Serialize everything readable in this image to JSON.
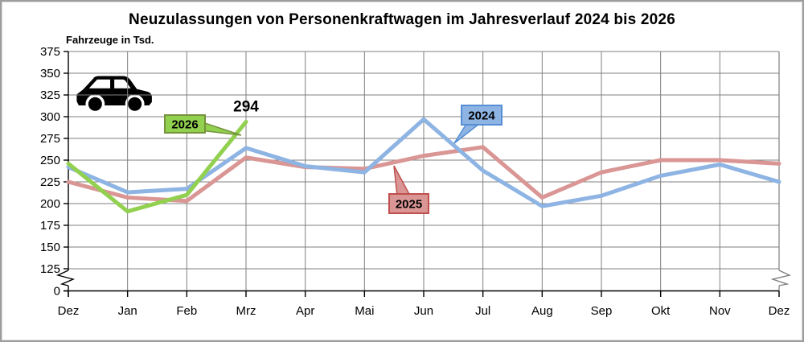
{
  "header": {
    "title": "Neuzulassungen von Personenkraftwagen im Jahresverlauf 2024 bis 2026",
    "unit_label": "Fahrzeuge in Tsd."
  },
  "colors": {
    "grid": "#7f7f7f",
    "axis": "#000000",
    "series_2024": "#8EB4E3",
    "series_2025": "#D99694",
    "series_2026": "#92D050",
    "callout_border_2024": "#558ED5",
    "callout_border_2025": "#C0504D",
    "callout_border_2026": "#76933C"
  },
  "chart_data": {
    "type": "line",
    "title": "Neuzulassungen von Personenkraftwagen im Jahresverlauf 2024 bis 2026",
    "ylabel": "Fahrzeuge in Tsd.",
    "xlabel": "",
    "grid": true,
    "ylim": [
      125,
      375
    ],
    "y_axis_break_to_zero": true,
    "y_ticks": [
      375,
      350,
      325,
      300,
      275,
      250,
      225,
      200,
      175,
      150,
      125,
      0
    ],
    "categories": [
      "Dez",
      "Jan",
      "Feb",
      "Mrz",
      "Apr",
      "Mai",
      "Jun",
      "Jul",
      "Aug",
      "Sep",
      "Okt",
      "Nov",
      "Dez"
    ],
    "series": [
      {
        "name": "2024",
        "color": "#8EB4E3",
        "callout_fill": "#8EB4E3",
        "callout_border": "#558ED5",
        "values": [
          242,
          213,
          217,
          264,
          243,
          236,
          297,
          238,
          197,
          209,
          232,
          245,
          225
        ]
      },
      {
        "name": "2025",
        "color": "#D99694",
        "callout_fill": "#D99694",
        "callout_border": "#C0504D",
        "values": [
          225,
          207,
          203,
          253,
          242,
          240,
          255,
          265,
          207,
          236,
          250,
          250,
          246
        ]
      },
      {
        "name": "2026",
        "color": "#92D050",
        "callout_fill": "#92D050",
        "callout_border": "#76933C",
        "values": [
          246,
          191,
          210,
          294,
          null,
          null,
          null,
          null,
          null,
          null,
          null,
          null,
          null
        ]
      }
    ],
    "annotations": [
      {
        "text": "294",
        "series": "2026",
        "category": "Mrz"
      }
    ],
    "legend_style": "callout-boxes-on-lines"
  }
}
